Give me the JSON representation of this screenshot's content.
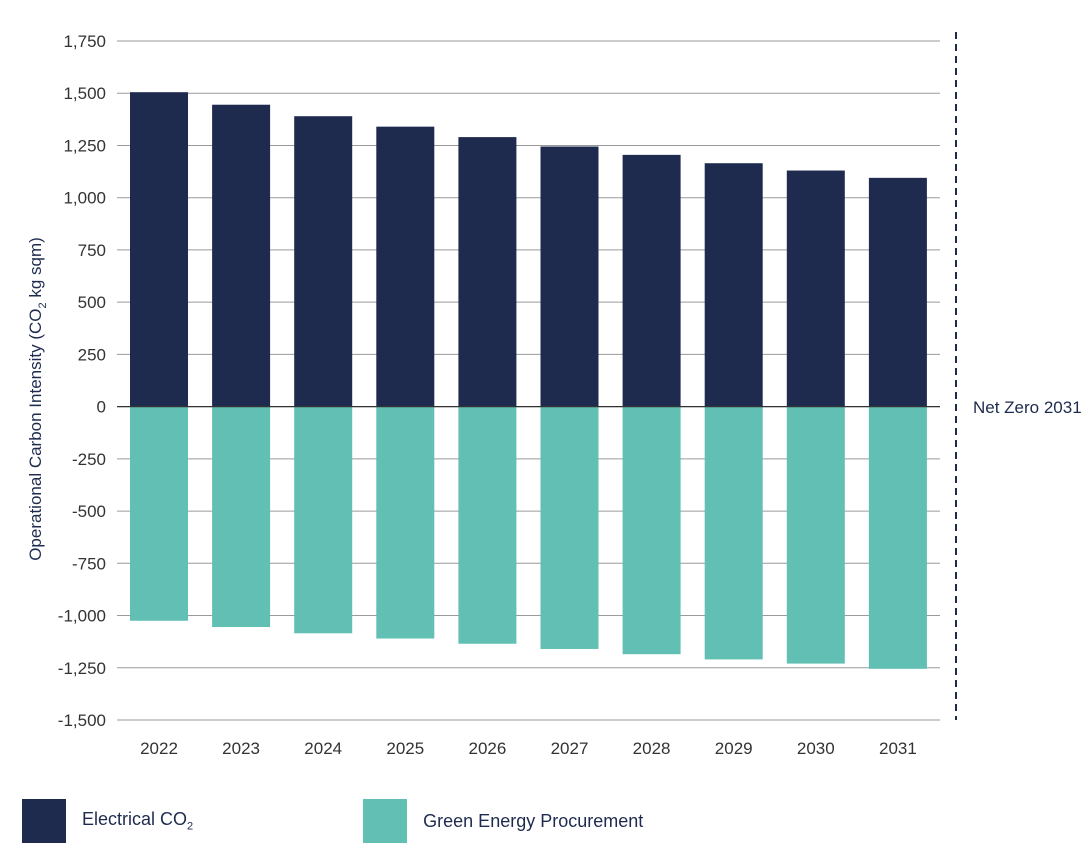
{
  "chart_data": {
    "type": "bar",
    "stacked": true,
    "categories": [
      "2022",
      "2023",
      "2024",
      "2025",
      "2026",
      "2027",
      "2028",
      "2029",
      "2030",
      "2031"
    ],
    "series": [
      {
        "name": "Electrical CO2",
        "legend_main": "Electrical CO",
        "legend_sub": "2",
        "color": "#1e2b4f",
        "values": [
          1505,
          1445,
          1390,
          1340,
          1290,
          1245,
          1205,
          1165,
          1130,
          1095
        ]
      },
      {
        "name": "Green Energy Procurement",
        "legend_main": "Green Energy Procurement",
        "legend_sub": "",
        "color": "#61bfb3",
        "values": [
          -1025,
          -1055,
          -1085,
          -1110,
          -1135,
          -1160,
          -1185,
          -1210,
          -1230,
          -1255
        ]
      }
    ],
    "ylim": [
      -1500,
      1750
    ],
    "yticks": [
      1750,
      1500,
      1250,
      1000,
      750,
      500,
      250,
      0,
      -250,
      -500,
      -750,
      -1000,
      -1250,
      -1500
    ],
    "ytick_labels": [
      "1,750",
      "1,500",
      "1,250",
      "1,000",
      "750",
      "500",
      "250",
      "0",
      "-250",
      "-500",
      "-750",
      "-1,000",
      "-1,250",
      "-1,500"
    ],
    "ylabel_main": "Operational Carbon Intensity (CO",
    "ylabel_sub": "2",
    "ylabel_rest": " kg sqm)",
    "xlabel": "",
    "title": "",
    "grid": true,
    "legend_position": "bottom-left",
    "annotation": "Net Zero 2031"
  }
}
